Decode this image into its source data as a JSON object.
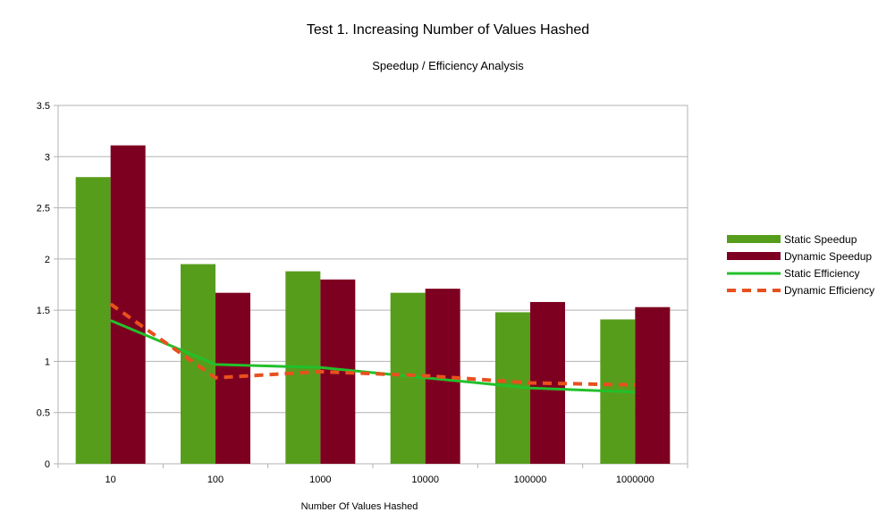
{
  "chart_data": {
    "type": "bar",
    "title": "Test 1. Increasing Number of Values Hashed",
    "subtitle": "Speedup / Efficiency Analysis",
    "xlabel": "Number Of Values Hashed",
    "ylabel": "",
    "categories": [
      "10",
      "100",
      "1000",
      "10000",
      "100000",
      "1000000"
    ],
    "ylim": [
      0,
      3.5
    ],
    "yticks": [
      "0",
      "0.5",
      "1",
      "1.5",
      "2",
      "2.5",
      "3",
      "3.5"
    ],
    "grid": true,
    "legend_position": "right",
    "series": [
      {
        "name": "Static Speedup",
        "type": "bar",
        "color": "#579d1c",
        "values": [
          2.8,
          1.95,
          1.88,
          1.67,
          1.48,
          1.41
        ]
      },
      {
        "name": "Dynamic Speedup",
        "type": "bar",
        "color": "#7e0021",
        "values": [
          3.11,
          1.67,
          1.8,
          1.71,
          1.58,
          1.53
        ]
      },
      {
        "name": "Static Efficiency",
        "type": "line",
        "style": "solid",
        "color": "#22c02a",
        "values": [
          1.4,
          0.97,
          0.94,
          0.84,
          0.74,
          0.7
        ]
      },
      {
        "name": "Dynamic Efficiency",
        "type": "line",
        "style": "dashed",
        "color": "#e8501e",
        "values": [
          1.56,
          0.84,
          0.9,
          0.86,
          0.79,
          0.77
        ]
      }
    ]
  }
}
